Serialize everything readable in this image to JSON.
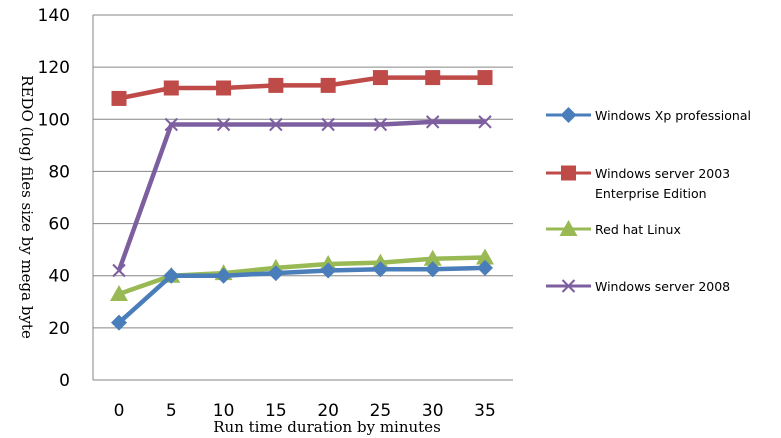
{
  "chart_data": {
    "type": "line",
    "x": [
      0,
      5,
      10,
      15,
      20,
      25,
      30,
      35
    ],
    "xlabel": "Run time duration by minutes",
    "ylabel": "REDO (log) files size by mega byte",
    "ylim": [
      0,
      140
    ],
    "yticks": [
      0,
      20,
      40,
      60,
      80,
      100,
      120,
      140
    ],
    "grid": "horizontal",
    "legend_position": "right",
    "series": [
      {
        "name": "Windows Xp professional",
        "values": [
          22,
          40,
          40,
          41,
          42,
          42.5,
          42.5,
          43
        ],
        "color": "#4a7ebb",
        "marker": "diamond"
      },
      {
        "name": "Windows server 2003 Enterprise Edition",
        "legend_lines": [
          "Windows server 2003",
          "Enterprise Edition"
        ],
        "values": [
          108,
          112,
          112,
          113,
          113,
          116,
          116,
          116
        ],
        "color": "#be4b48",
        "marker": "square"
      },
      {
        "name": "Red hat Linux",
        "values": [
          33,
          40,
          41,
          43,
          44.5,
          45,
          46.5,
          47
        ],
        "color": "#98b954",
        "marker": "triangle"
      },
      {
        "name": "Windows server 2008",
        "values": [
          42,
          98,
          98,
          98,
          98,
          98,
          99,
          99
        ],
        "color": "#7d5fa0",
        "marker": "x"
      }
    ]
  }
}
